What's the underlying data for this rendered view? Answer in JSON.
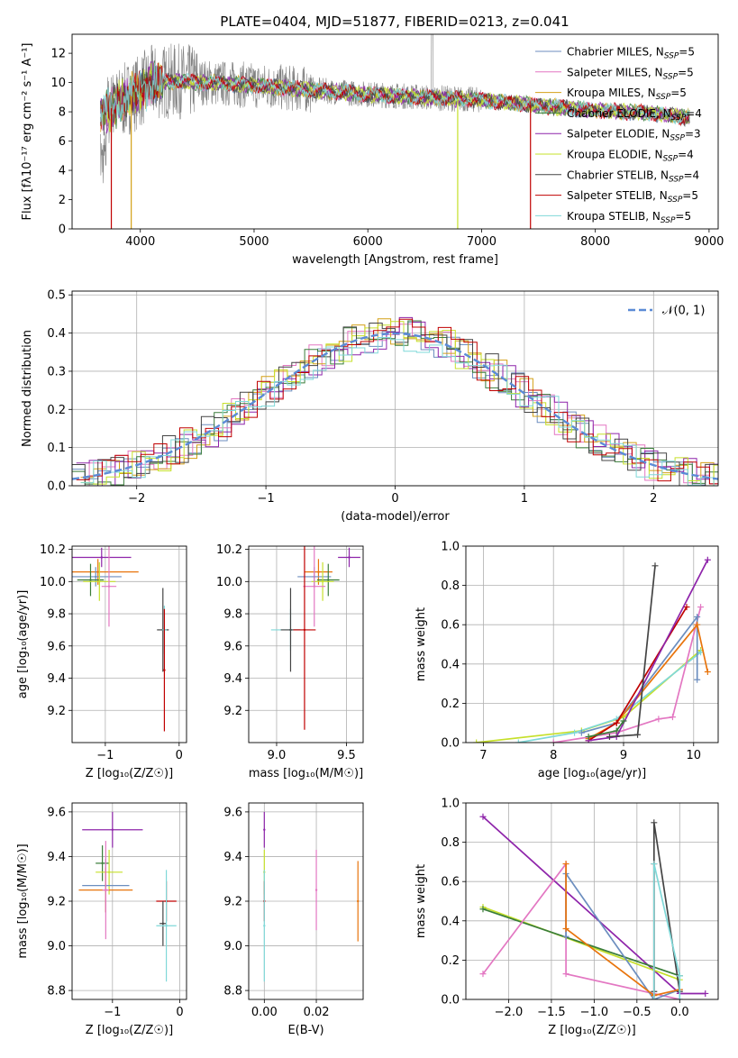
{
  "title": "PLATE=0404, MJD=51877, FIBERID=0213, z=0.041",
  "colors": {
    "chabrier_miles": "#6c8ebf",
    "salpeter_miles": "#e377c2",
    "kroupa_miles": "#d4a017",
    "chabrier_elodie": "#3a7d3a",
    "salpeter_elodie": "#8e24aa",
    "kroupa_elodie": "#c6e02a",
    "chabrier_stelib": "#444444",
    "salpeter_stelib": "#c00000",
    "kroupa_stelib": "#7fd8d8",
    "mean_orange": "#e8740c"
  },
  "chart_data": [
    {
      "id": "spectrum",
      "type": "line",
      "xlabel": "wavelength [Angstrom, rest frame]",
      "ylabel": "Flux [fλ10⁻¹⁷ erg cm⁻² s⁻¹ A⁻¹]",
      "xlim": [
        3400,
        9080
      ],
      "ylim": [
        0,
        13.3
      ],
      "xticks": [
        4000,
        5000,
        6000,
        7000,
        8000,
        9000
      ],
      "yticks": [
        0,
        2,
        4,
        6,
        8,
        10,
        12
      ],
      "grid": false,
      "legend_position": "top-right",
      "legend": [
        {
          "label": "Chabrier MILES, N",
          "sub": "SSP",
          "suffix": "=5",
          "color": "chabrier_miles"
        },
        {
          "label": "Salpeter MILES, N",
          "sub": "SSP",
          "suffix": "=5",
          "color": "salpeter_miles"
        },
        {
          "label": "Kroupa MILES, N",
          "sub": "SSP",
          "suffix": "=5",
          "color": "kroupa_miles"
        },
        {
          "label": "Chabrier ELODIE, N",
          "sub": "SSP",
          "suffix": "=4",
          "color": "chabrier_elodie"
        },
        {
          "label": "Salpeter ELODIE, N",
          "sub": "SSP",
          "suffix": "=3",
          "color": "salpeter_elodie"
        },
        {
          "label": "Kroupa ELODIE, N",
          "sub": "SSP",
          "suffix": "=4",
          "color": "kroupa_elodie"
        },
        {
          "label": "Chabrier STELIB, N",
          "sub": "SSP",
          "suffix": "=4",
          "color": "chabrier_stelib"
        },
        {
          "label": "Salpeter STELIB, N",
          "sub": "SSP",
          "suffix": "=5",
          "color": "salpeter_stelib"
        },
        {
          "label": "Kroupa STELIB, N",
          "sub": "SSP",
          "suffix": "=5",
          "color": "kroupa_stelib"
        }
      ],
      "continuum_x": [
        3650,
        3800,
        3950,
        4100,
        4300,
        4600,
        5000,
        5500,
        6000,
        6500,
        7000,
        7400,
        8000,
        8500,
        8830
      ],
      "continuum_y": [
        7.8,
        8.5,
        9.2,
        10.0,
        10.1,
        10.0,
        9.8,
        9.5,
        9.2,
        9.0,
        8.8,
        8.5,
        8.1,
        7.9,
        7.6
      ],
      "model_drops": [
        {
          "x": 3745,
          "series": "salpeter_stelib"
        },
        {
          "x": 3920,
          "series": "kroupa_miles"
        },
        {
          "x": 6790,
          "series": "kroupa_elodie"
        },
        {
          "x": 7430,
          "series": "salpeter_stelib"
        }
      ]
    },
    {
      "id": "residuals",
      "type": "line",
      "xlabel": "(data-model)/error",
      "ylabel": "Normed distribution",
      "xlim": [
        -2.5,
        2.5
      ],
      "ylim": [
        0,
        0.51
      ],
      "xticks": [
        -2,
        -1,
        0,
        1,
        2
      ],
      "yticks": [
        0.0,
        0.1,
        0.2,
        0.3,
        0.4,
        0.5
      ],
      "grid": true,
      "legend": [
        {
          "label": "𝒩(0, 1)",
          "color": "#5b8bd6",
          "dashed": true
        }
      ],
      "legend_position": "top-right",
      "bin_width": 0.1,
      "series": [
        "chabrier_miles",
        "salpeter_miles",
        "kroupa_miles",
        "chabrier_elodie",
        "salpeter_elodie",
        "kroupa_elodie",
        "chabrier_stelib",
        "salpeter_stelib",
        "kroupa_stelib"
      ]
    },
    {
      "id": "age_vs_Z",
      "type": "scatter",
      "xlabel": "Z [log₁₀(Z/Z☉)]",
      "ylabel": "age  [log₁₀(age/yr)]",
      "xlim": [
        -1.45,
        0.1
      ],
      "ylim": [
        9.0,
        10.22
      ],
      "xticks": [
        -1,
        0
      ],
      "yticks": [
        9.2,
        9.4,
        9.6,
        9.8,
        10.0,
        10.2
      ],
      "grid": true,
      "points": [
        {
          "series": "salpeter_elodie",
          "x": -1.05,
          "y": 10.15,
          "dx": 0.4,
          "dy": 0.06
        },
        {
          "series": "mean_orange",
          "x": -1.1,
          "y": 10.06,
          "dx": 0.55,
          "dy": 0.08
        },
        {
          "series": "chabrier_miles",
          "x": -1.13,
          "y": 10.03,
          "dx": 0.35,
          "dy": 0.06
        },
        {
          "series": "chabrier_elodie",
          "x": -1.2,
          "y": 10.01,
          "dx": 0.18,
          "dy": 0.1
        },
        {
          "series": "kroupa_elodie",
          "x": -1.08,
          "y": 10.0,
          "dx": 0.22,
          "dy": 0.12
        },
        {
          "series": "salpeter_miles",
          "x": -0.95,
          "y": 9.97,
          "dx": 0.1,
          "dy": 0.25
        },
        {
          "series": "chabrier_stelib",
          "x": -0.22,
          "y": 9.7,
          "dx": 0.08,
          "dy": 0.26
        },
        {
          "series": "kroupa_stelib",
          "x": -0.2,
          "y": 9.7,
          "dx": 0.03,
          "dy": 0.15
        },
        {
          "series": "salpeter_stelib",
          "x": -0.2,
          "y": 9.45,
          "dx": 0.0,
          "dy": 0.38
        }
      ]
    },
    {
      "id": "age_vs_mass",
      "type": "scatter",
      "xlabel": "mass [log₁₀(M/M☉)]",
      "ylabel": "",
      "xlim": [
        8.8,
        9.62
      ],
      "ylim": [
        9.0,
        10.22
      ],
      "xticks": [
        9.0,
        9.5
      ],
      "yticks": [
        9.2,
        9.4,
        9.6,
        9.8,
        10.0,
        10.2
      ],
      "grid": true,
      "points": [
        {
          "series": "salpeter_elodie",
          "x": 9.52,
          "y": 10.15,
          "dx": 0.08,
          "dy": 0.06
        },
        {
          "series": "mean_orange",
          "x": 9.3,
          "y": 10.06,
          "dx": 0.1,
          "dy": 0.08
        },
        {
          "series": "chabrier_miles",
          "x": 9.27,
          "y": 10.03,
          "dx": 0.12,
          "dy": 0.06
        },
        {
          "series": "chabrier_elodie",
          "x": 9.37,
          "y": 10.01,
          "dx": 0.08,
          "dy": 0.1
        },
        {
          "series": "kroupa_elodie",
          "x": 9.33,
          "y": 10.0,
          "dx": 0.08,
          "dy": 0.12
        },
        {
          "series": "salpeter_miles",
          "x": 9.27,
          "y": 9.97,
          "dx": 0.08,
          "dy": 0.25
        },
        {
          "series": "kroupa_stelib",
          "x": 9.1,
          "y": 9.7,
          "dx": 0.14,
          "dy": 0.13
        },
        {
          "series": "chabrier_stelib",
          "x": 9.1,
          "y": 9.7,
          "dx": 0.07,
          "dy": 0.26
        },
        {
          "series": "salpeter_stelib",
          "x": 9.2,
          "y": 9.7,
          "dx": 0.08,
          "dy": 0.62
        }
      ]
    },
    {
      "id": "weight_vs_age",
      "type": "line",
      "xlabel": "age  [log₁₀(age/yr)]",
      "ylabel": "mass weight",
      "xlim": [
        6.75,
        10.35
      ],
      "ylim": [
        0,
        1.0
      ],
      "xticks": [
        7,
        8,
        9,
        10
      ],
      "yticks": [
        0.0,
        0.2,
        0.4,
        0.6,
        0.8,
        1.0
      ],
      "grid": true,
      "series": [
        {
          "series": "kroupa_elodie",
          "x": [
            6.9,
            8.4,
            9.0,
            10.1
          ],
          "y": [
            0.0,
            0.06,
            0.13,
            0.47
          ]
        },
        {
          "series": "kroupa_stelib",
          "x": [
            7.5,
            8.3,
            8.9,
            10.1
          ],
          "y": [
            0.0,
            0.05,
            0.12,
            0.46
          ]
        },
        {
          "series": "salpeter_miles",
          "x": [
            8.0,
            8.9,
            9.5,
            9.7,
            10.1
          ],
          "y": [
            0.0,
            0.05,
            0.12,
            0.13,
            0.69
          ]
        },
        {
          "series": "chabrier_miles",
          "x": [
            8.4,
            8.9,
            10.05,
            10.05
          ],
          "y": [
            0.05,
            0.1,
            0.64,
            0.32
          ]
        },
        {
          "series": "mean_orange",
          "x": [
            8.5,
            8.9,
            10.05,
            10.2
          ],
          "y": [
            0.02,
            0.1,
            0.6,
            0.36
          ]
        },
        {
          "series": "salpeter_stelib",
          "x": [
            8.5,
            8.9,
            9.9
          ],
          "y": [
            0.01,
            0.1,
            0.69
          ]
        },
        {
          "series": "salpeter_elodie",
          "x": [
            8.5,
            8.9,
            10.2
          ],
          "y": [
            0.01,
            0.03,
            0.93
          ]
        },
        {
          "series": "chabrier_stelib",
          "x": [
            8.8,
            9.2,
            9.45
          ],
          "y": [
            0.03,
            0.04,
            0.9
          ]
        },
        {
          "series": "chabrier_elodie",
          "x": [
            8.5,
            8.9,
            9.0
          ],
          "y": [
            0.03,
            0.06,
            0.11
          ]
        }
      ]
    },
    {
      "id": "mass_vs_Z",
      "type": "scatter",
      "xlabel": "Z [log₁₀(Z/Z☉)]",
      "ylabel": "mass [log₁₀(M/M☉)]",
      "xlim": [
        -1.6,
        0.1
      ],
      "ylim": [
        8.76,
        9.64
      ],
      "xticks": [
        -1,
        0
      ],
      "yticks": [
        8.8,
        9.0,
        9.2,
        9.4,
        9.6
      ],
      "grid": true,
      "points": [
        {
          "series": "salpeter_elodie",
          "x": -1.0,
          "y": 9.52,
          "dx": 0.45,
          "dy": 0.08
        },
        {
          "series": "chabrier_elodie",
          "x": -1.15,
          "y": 9.37,
          "dx": 0.1,
          "dy": 0.08
        },
        {
          "series": "kroupa_elodie",
          "x": -1.05,
          "y": 9.33,
          "dx": 0.2,
          "dy": 0.1
        },
        {
          "series": "chabrier_miles",
          "x": -1.1,
          "y": 9.27,
          "dx": 0.35,
          "dy": 0.12
        },
        {
          "series": "mean_orange",
          "x": -1.1,
          "y": 9.25,
          "dx": 0.4,
          "dy": 0.1
        },
        {
          "series": "salpeter_miles",
          "x": -1.1,
          "y": 9.25,
          "dx": 0.05,
          "dy": 0.22
        },
        {
          "series": "salpeter_stelib",
          "x": -0.2,
          "y": 9.2,
          "dx": 0.15,
          "dy": 0.09
        },
        {
          "series": "chabrier_stelib",
          "x": -0.25,
          "y": 9.1,
          "dx": 0.05,
          "dy": 0.1
        },
        {
          "series": "kroupa_stelib",
          "x": -0.2,
          "y": 9.09,
          "dx": 0.15,
          "dy": 0.25
        }
      ]
    },
    {
      "id": "mass_vs_ebv",
      "type": "scatter",
      "xlabel": "E(B-V)",
      "ylabel": "",
      "xlim": [
        -0.006,
        0.038
      ],
      "ylim": [
        8.76,
        9.64
      ],
      "xticks": [
        0.0,
        0.02
      ],
      "tick_labels": [
        "0.00",
        "0.02"
      ],
      "yticks": [
        8.8,
        9.0,
        9.2,
        9.4,
        9.6
      ],
      "grid": true,
      "points": [
        {
          "series": "salpeter_elodie",
          "x": 0.0,
          "y": 9.52,
          "dx": 0,
          "dy": 0.08
        },
        {
          "series": "kroupa_elodie",
          "x": 0.0,
          "y": 9.33,
          "dx": 0,
          "dy": 0.1
        },
        {
          "series": "salpeter_stelib",
          "x": 0.0,
          "y": 9.2,
          "dx": 0,
          "dy": 0.09
        },
        {
          "series": "kroupa_stelib",
          "x": 0.0,
          "y": 9.09,
          "dx": 0,
          "dy": 0.25
        },
        {
          "series": "salpeter_miles",
          "x": 0.02,
          "y": 9.25,
          "dx": 0,
          "dy": 0.18
        },
        {
          "series": "mean_orange",
          "x": 0.036,
          "y": 9.2,
          "dx": 0,
          "dy": 0.18
        }
      ]
    },
    {
      "id": "weight_vs_Z",
      "type": "line",
      "xlabel": "Z [log₁₀(Z/Z☉)]",
      "ylabel": "mass weight",
      "xlim": [
        -2.5,
        0.45
      ],
      "ylim": [
        0,
        1.0
      ],
      "xticks": [
        -2.0,
        -1.5,
        -1.0,
        -0.5,
        0.0
      ],
      "tick_labels": [
        "−2.0",
        "−1.5",
        "−1.0",
        "−0.5",
        "0.0"
      ],
      "yticks": [
        0.0,
        0.2,
        0.4,
        0.6,
        0.8,
        1.0
      ],
      "grid": true,
      "series": [
        {
          "series": "salpeter_elodie",
          "x": [
            -2.3,
            0.0,
            0.3
          ],
          "y": [
            0.93,
            0.03,
            0.03
          ]
        },
        {
          "series": "kroupa_elodie",
          "x": [
            -2.3,
            0.0
          ],
          "y": [
            0.47,
            0.1
          ]
        },
        {
          "series": "chabrier_elodie",
          "x": [
            -2.3,
            0.0
          ],
          "y": [
            0.46,
            0.12
          ]
        },
        {
          "series": "salpeter_miles",
          "x": [
            -2.3,
            -1.33,
            -1.33,
            0.0
          ],
          "y": [
            0.13,
            0.69,
            0.13,
            0.0
          ]
        },
        {
          "series": "chabrier_miles",
          "x": [
            -1.33,
            -1.33,
            -0.3,
            0.0
          ],
          "y": [
            0.32,
            0.64,
            0.0,
            0.05
          ]
        },
        {
          "series": "mean_orange",
          "x": [
            -1.33,
            -1.33,
            -0.3,
            0.0
          ],
          "y": [
            0.69,
            0.36,
            0.02,
            0.05
          ]
        },
        {
          "series": "chabrier_stelib",
          "x": [
            -0.3,
            -0.3,
            0.0
          ],
          "y": [
            0.04,
            0.9,
            0.04
          ]
        },
        {
          "series": "salpeter_stelib",
          "x": [
            -0.3,
            -0.3
          ],
          "y": [
            0.0,
            0.69
          ]
        },
        {
          "series": "kroupa_stelib",
          "x": [
            -0.3,
            -0.3,
            0.0,
            0.0
          ],
          "y": [
            0.0,
            0.69,
            0.12,
            0.0
          ]
        }
      ]
    }
  ]
}
